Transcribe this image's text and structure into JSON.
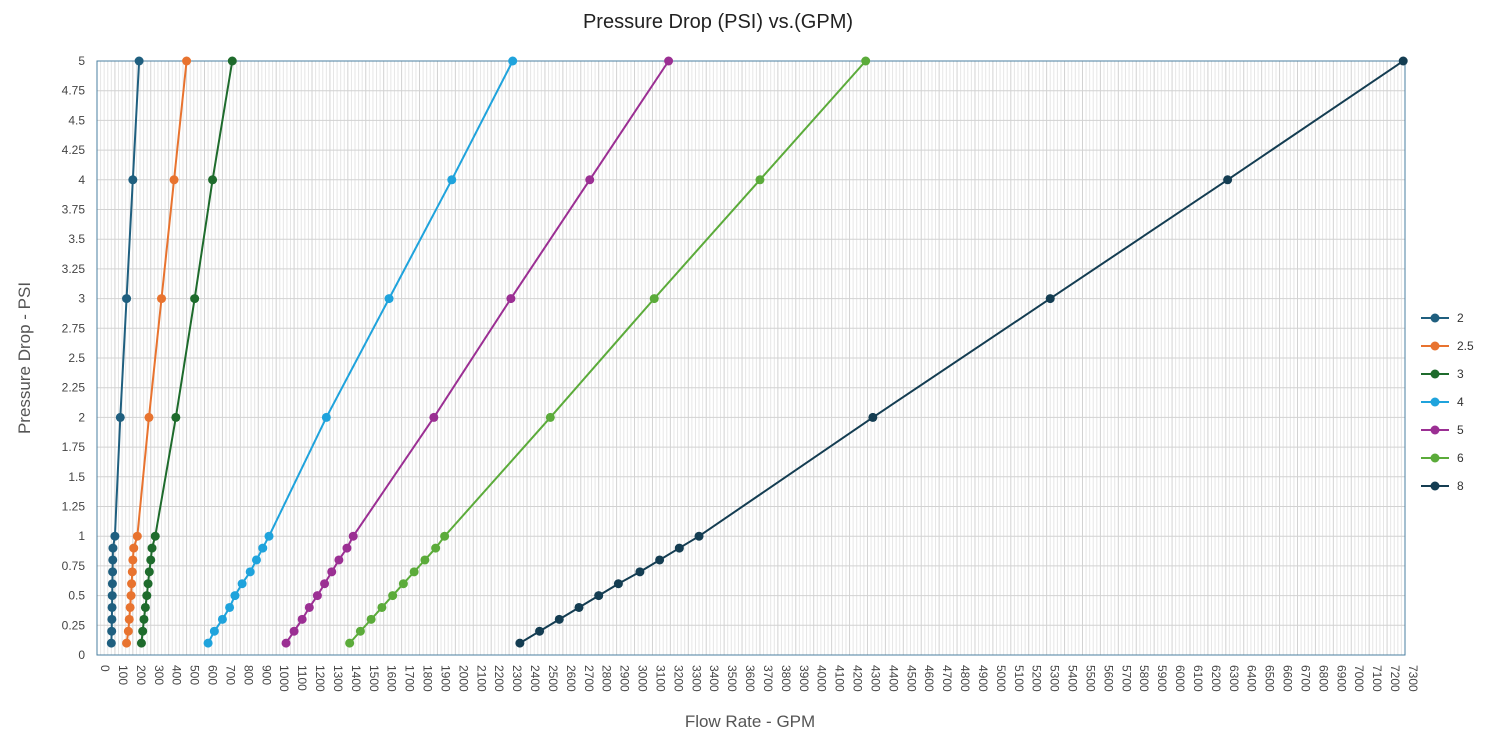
{
  "chart_data": {
    "type": "line",
    "title": "Pressure Drop (PSI) vs.(GPM)",
    "xlabel": "Flow Rate - GPM",
    "ylabel": "Pressure Drop - PSI",
    "xlim": [
      0,
      7300
    ],
    "ylim": [
      0,
      5
    ],
    "x_ticks": [
      0,
      100,
      200,
      300,
      400,
      500,
      600,
      700,
      800,
      900,
      1000,
      1100,
      1200,
      1300,
      1400,
      1500,
      1600,
      1700,
      1800,
      1900,
      2000,
      2100,
      2200,
      2300,
      2400,
      2500,
      2600,
      2700,
      2800,
      2900,
      3000,
      3100,
      3200,
      3300,
      3400,
      3500,
      3600,
      3700,
      3800,
      3900,
      4000,
      4100,
      4200,
      4300,
      4400,
      4500,
      4600,
      4700,
      4800,
      4900,
      5000,
      5100,
      5200,
      5300,
      5400,
      5500,
      5600,
      5700,
      5800,
      5900,
      6000,
      6100,
      6200,
      6300,
      6400,
      6500,
      6600,
      6700,
      6800,
      6900,
      7000,
      7100,
      7200,
      7300
    ],
    "y_ticks": [
      0,
      0.25,
      0.5,
      0.75,
      1,
      1.25,
      1.5,
      1.75,
      2,
      2.25,
      2.5,
      2.75,
      3,
      3.25,
      3.5,
      3.75,
      4,
      4.25,
      4.5,
      4.75,
      5
    ],
    "grid": true,
    "legend_position": "right",
    "series": [
      {
        "name": "2",
        "color": "#1f5f7f",
        "points": [
          [
            80,
            0.1
          ],
          [
            82,
            0.2
          ],
          [
            83,
            0.3
          ],
          [
            84,
            0.4
          ],
          [
            85,
            0.5
          ],
          [
            86,
            0.6
          ],
          [
            87,
            0.7
          ],
          [
            88,
            0.8
          ],
          [
            89,
            0.9
          ],
          [
            100,
            1
          ],
          [
            130,
            2
          ],
          [
            165,
            3
          ],
          [
            200,
            4
          ],
          [
            235,
            5
          ]
        ]
      },
      {
        "name": "2.5",
        "color": "#e8732f",
        "points": [
          [
            165,
            0.1
          ],
          [
            175,
            0.2
          ],
          [
            180,
            0.3
          ],
          [
            185,
            0.4
          ],
          [
            190,
            0.5
          ],
          [
            193,
            0.6
          ],
          [
            197,
            0.7
          ],
          [
            200,
            0.8
          ],
          [
            205,
            0.9
          ],
          [
            225,
            1
          ],
          [
            290,
            2
          ],
          [
            360,
            3
          ],
          [
            430,
            4
          ],
          [
            500,
            5
          ]
        ]
      },
      {
        "name": "3",
        "color": "#1e6b2c",
        "points": [
          [
            248,
            0.1
          ],
          [
            255,
            0.2
          ],
          [
            262,
            0.3
          ],
          [
            270,
            0.4
          ],
          [
            278,
            0.5
          ],
          [
            285,
            0.6
          ],
          [
            292,
            0.7
          ],
          [
            300,
            0.8
          ],
          [
            307,
            0.9
          ],
          [
            325,
            1
          ],
          [
            440,
            2
          ],
          [
            545,
            3
          ],
          [
            645,
            4
          ],
          [
            755,
            5
          ]
        ]
      },
      {
        "name": "4",
        "color": "#1fa3dc",
        "points": [
          [
            620,
            0.1
          ],
          [
            655,
            0.2
          ],
          [
            700,
            0.3
          ],
          [
            740,
            0.4
          ],
          [
            770,
            0.5
          ],
          [
            810,
            0.6
          ],
          [
            855,
            0.7
          ],
          [
            890,
            0.8
          ],
          [
            925,
            0.9
          ],
          [
            960,
            1
          ],
          [
            1280,
            2
          ],
          [
            1630,
            3
          ],
          [
            1980,
            4
          ],
          [
            2320,
            5
          ]
        ]
      },
      {
        "name": "5",
        "color": "#9b2f93",
        "points": [
          [
            1055,
            0.1
          ],
          [
            1100,
            0.2
          ],
          [
            1145,
            0.3
          ],
          [
            1185,
            0.4
          ],
          [
            1230,
            0.5
          ],
          [
            1270,
            0.6
          ],
          [
            1310,
            0.7
          ],
          [
            1350,
            0.8
          ],
          [
            1395,
            0.9
          ],
          [
            1430,
            1
          ],
          [
            1880,
            2
          ],
          [
            2310,
            3
          ],
          [
            2750,
            4
          ],
          [
            3190,
            5
          ]
        ]
      },
      {
        "name": "6",
        "color": "#5bab3a",
        "points": [
          [
            1410,
            0.1
          ],
          [
            1470,
            0.2
          ],
          [
            1530,
            0.3
          ],
          [
            1590,
            0.4
          ],
          [
            1650,
            0.5
          ],
          [
            1710,
            0.6
          ],
          [
            1770,
            0.7
          ],
          [
            1830,
            0.8
          ],
          [
            1890,
            0.9
          ],
          [
            1940,
            1
          ],
          [
            2530,
            2
          ],
          [
            3110,
            3
          ],
          [
            3700,
            4
          ],
          [
            4290,
            5
          ]
        ]
      },
      {
        "name": "8",
        "color": "#143d52",
        "points": [
          [
            2360,
            0.1
          ],
          [
            2470,
            0.2
          ],
          [
            2580,
            0.3
          ],
          [
            2690,
            0.4
          ],
          [
            2800,
            0.5
          ],
          [
            2910,
            0.6
          ],
          [
            3030,
            0.7
          ],
          [
            3140,
            0.8
          ],
          [
            3250,
            0.9
          ],
          [
            3360,
            1
          ],
          [
            4330,
            2
          ],
          [
            5320,
            3
          ],
          [
            6310,
            4
          ],
          [
            7290,
            5
          ]
        ]
      }
    ]
  }
}
